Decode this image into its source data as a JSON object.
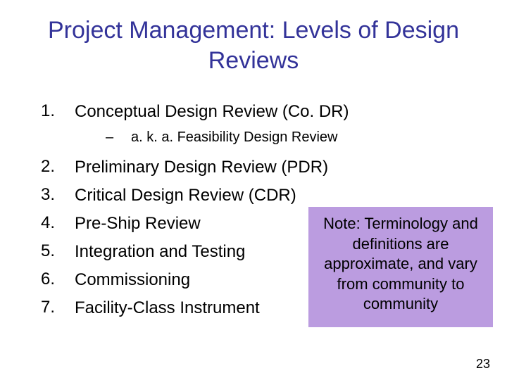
{
  "title_color": "#333399",
  "title_text": "Project Management: Levels of Design Reviews",
  "items": [
    {
      "n": "1.",
      "t": "Conceptual Design Review (Co. DR)"
    },
    {
      "n": "2.",
      "t": "Preliminary Design Review (PDR)"
    },
    {
      "n": "3.",
      "t": "Critical Design Review (CDR)"
    },
    {
      "n": "4.",
      "t": "Pre-Ship Review"
    },
    {
      "n": "5.",
      "t": "Integration and Testing"
    },
    {
      "n": "6.",
      "t": "Commissioning"
    },
    {
      "n": "7.",
      "t": "Facility-Class Instrument"
    }
  ],
  "subitem": {
    "dash": "–",
    "t": "a. k. a. Feasibility Design Review"
  },
  "note": {
    "bg": "#bb9ce0",
    "text": "Note: Terminology and definitions are approximate, and vary from community to community"
  },
  "page_number": "23",
  "list_number_fontsize": 24,
  "list_text_fontsize": 24,
  "sub_fontsize": 20,
  "title_fontsize": 34,
  "note_fontsize": 22
}
